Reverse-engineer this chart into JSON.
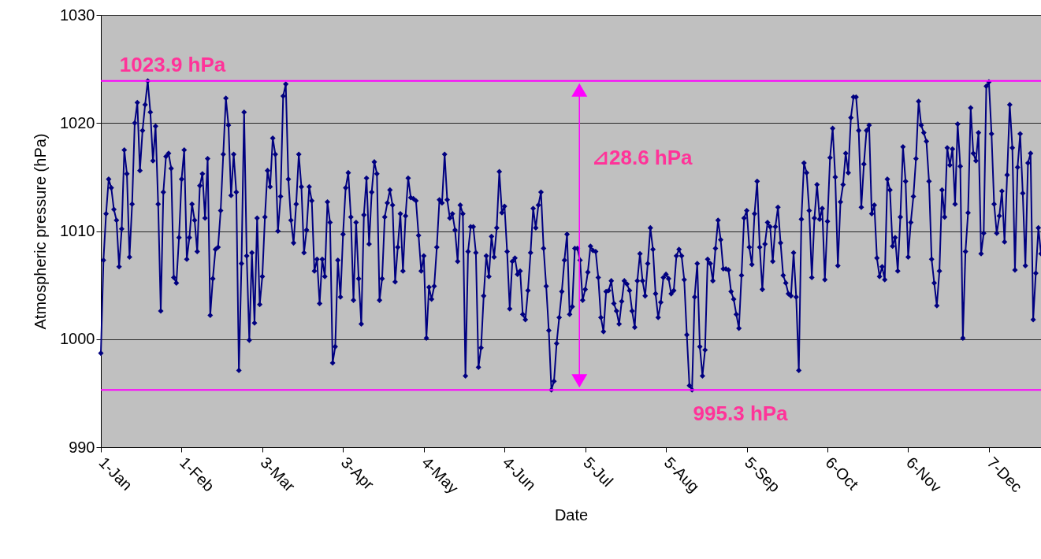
{
  "chart_data": {
    "type": "line",
    "xlabel": "Date",
    "ylabel": "Atmospheric pressure (hPa)",
    "x": [
      "--01-01",
      "--01-02",
      "--01-03",
      "--01-04",
      "--01-05",
      "--01-06",
      "--01-07",
      "--01-08",
      "--01-09",
      "--01-10",
      "--01-11",
      "--01-12",
      "--01-13",
      "--01-14",
      "--01-15",
      "--01-16",
      "--01-17",
      "--01-18",
      "--01-19",
      "--01-20",
      "--01-21",
      "--01-22",
      "--01-23",
      "--01-24",
      "--01-25",
      "--01-26",
      "--01-27",
      "--01-28",
      "--01-29",
      "--01-30",
      "--01-31",
      "--02-01",
      "--02-02",
      "--02-03",
      "--02-04",
      "--02-05",
      "--02-06",
      "--02-07",
      "--02-08",
      "--02-09",
      "--02-10",
      "--02-11",
      "--02-12",
      "--02-13",
      "--02-14",
      "--02-15",
      "--02-16",
      "--02-17",
      "--02-18",
      "--02-19",
      "--02-20",
      "--02-21",
      "--02-22",
      "--02-23",
      "--02-24",
      "--02-25",
      "--02-26",
      "--02-27",
      "--02-28",
      "--02-29",
      "--03-01",
      "--03-02",
      "--03-03",
      "--03-04",
      "--03-05",
      "--03-06",
      "--03-07",
      "--03-08",
      "--03-09",
      "--03-10",
      "--03-11",
      "--03-12",
      "--03-13",
      "--03-14",
      "--03-15",
      "--03-16",
      "--03-17",
      "--03-18",
      "--03-19",
      "--03-20",
      "--03-21",
      "--03-22",
      "--03-23",
      "--03-24",
      "--03-25",
      "--03-26",
      "--03-27",
      "--03-28",
      "--03-29",
      "--03-30",
      "--03-31",
      "--04-01",
      "--04-02",
      "--04-03",
      "--04-04",
      "--04-05",
      "--04-06",
      "--04-07",
      "--04-08",
      "--04-09",
      "--04-10",
      "--04-11",
      "--04-12",
      "--04-13",
      "--04-14",
      "--04-15",
      "--04-16",
      "--04-17",
      "--04-18",
      "--04-19",
      "--04-20",
      "--04-21",
      "--04-22",
      "--04-23",
      "--04-24",
      "--04-25",
      "--04-26",
      "--04-27",
      "--04-28",
      "--04-29",
      "--04-30",
      "--05-01",
      "--05-02",
      "--05-03",
      "--05-04",
      "--05-05",
      "--05-06",
      "--05-07",
      "--05-08",
      "--05-09",
      "--05-10",
      "--05-11",
      "--05-12",
      "--05-13",
      "--05-14",
      "--05-15",
      "--05-16",
      "--05-17",
      "--05-18",
      "--05-19",
      "--05-20",
      "--05-21",
      "--05-22",
      "--05-23",
      "--05-24",
      "--05-25",
      "--05-26",
      "--05-27",
      "--05-28",
      "--05-29",
      "--05-30",
      "--05-31",
      "--06-01",
      "--06-02",
      "--06-03",
      "--06-04",
      "--06-05",
      "--06-06",
      "--06-07",
      "--06-08",
      "--06-09",
      "--06-10",
      "--06-11",
      "--06-12",
      "--06-13",
      "--06-14",
      "--06-15",
      "--06-16",
      "--06-17",
      "--06-18",
      "--06-19",
      "--06-20",
      "--06-21",
      "--06-22",
      "--06-23",
      "--06-24",
      "--06-25",
      "--06-26",
      "--06-27",
      "--06-28",
      "--06-29",
      "--06-30",
      "--07-01",
      "--07-02",
      "--07-03",
      "--07-04",
      "--07-05",
      "--07-06",
      "--07-07",
      "--07-08",
      "--07-09",
      "--07-10",
      "--07-11",
      "--07-12",
      "--07-13",
      "--07-14",
      "--07-15",
      "--07-16",
      "--07-17",
      "--07-18",
      "--07-19",
      "--07-20",
      "--07-21",
      "--07-22",
      "--07-23",
      "--07-24",
      "--07-25",
      "--07-26",
      "--07-27",
      "--07-28",
      "--07-29",
      "--07-30",
      "--07-31",
      "--08-01",
      "--08-02",
      "--08-03",
      "--08-04",
      "--08-05",
      "--08-06",
      "--08-07",
      "--08-08",
      "--08-09",
      "--08-10",
      "--08-11",
      "--08-12",
      "--08-13",
      "--08-14",
      "--08-15",
      "--08-16",
      "--08-17",
      "--08-18",
      "--08-19",
      "--08-20",
      "--08-21",
      "--08-22",
      "--08-23",
      "--08-24",
      "--08-25",
      "--08-26",
      "--08-27",
      "--08-28",
      "--08-29",
      "--08-30",
      "--08-31",
      "--09-01",
      "--09-02",
      "--09-03",
      "--09-04",
      "--09-05",
      "--09-06",
      "--09-07",
      "--09-08",
      "--09-09",
      "--09-10",
      "--09-11",
      "--09-12",
      "--09-13",
      "--09-14",
      "--09-15",
      "--09-16",
      "--09-17",
      "--09-18",
      "--09-19",
      "--09-20",
      "--09-21",
      "--09-22",
      "--09-23",
      "--09-24",
      "--09-25",
      "--09-26",
      "--09-27",
      "--09-28",
      "--09-29",
      "--09-30",
      "--10-01",
      "--10-02",
      "--10-03",
      "--10-04",
      "--10-05",
      "--10-06",
      "--10-07",
      "--10-08",
      "--10-09",
      "--10-10",
      "--10-11",
      "--10-12",
      "--10-13",
      "--10-14",
      "--10-15",
      "--10-16",
      "--10-17",
      "--10-18",
      "--10-19",
      "--10-20",
      "--10-21",
      "--10-22",
      "--10-23",
      "--10-24",
      "--10-25",
      "--10-26",
      "--10-27",
      "--10-28",
      "--10-29",
      "--10-30",
      "--10-31",
      "--11-01",
      "--11-02",
      "--11-03",
      "--11-04",
      "--11-05",
      "--11-06",
      "--11-07",
      "--11-08",
      "--11-09",
      "--11-10",
      "--11-11",
      "--11-12",
      "--11-13",
      "--11-14",
      "--11-15",
      "--11-16",
      "--11-17",
      "--11-18",
      "--11-19",
      "--11-20",
      "--11-21",
      "--11-22",
      "--11-23",
      "--11-24",
      "--11-25",
      "--11-26",
      "--11-27",
      "--11-28",
      "--11-29",
      "--11-30",
      "--12-01",
      "--12-02",
      "--12-03",
      "--12-04",
      "--12-05",
      "--12-06",
      "--12-07",
      "--12-08",
      "--12-09",
      "--12-10",
      "--12-11",
      "--12-12",
      "--12-13",
      "--12-14",
      "--12-15",
      "--12-16",
      "--12-17",
      "--12-18",
      "--12-19",
      "--12-20",
      "--12-21",
      "--12-22",
      "--12-23",
      "--12-24",
      "--12-25",
      "--12-26",
      "--12-27"
    ],
    "series": [
      {
        "color": "#000080",
        "values": [
          998.7,
          1007.3,
          1011.6,
          1014.8,
          1014.0,
          1012.0,
          1011.0,
          1006.7,
          1010.2,
          1017.5,
          1015.3,
          1007.6,
          1012.5,
          1020.0,
          1021.9,
          1015.6,
          1019.3,
          1021.7,
          1023.9,
          1021.0,
          1016.5,
          1019.7,
          1012.5,
          1002.6,
          1013.6,
          1016.9,
          1017.2,
          1015.8,
          1005.7,
          1005.2,
          1009.4,
          1014.8,
          1017.5,
          1007.4,
          1009.4,
          1012.5,
          1011.0,
          1008.1,
          1014.2,
          1015.3,
          1011.2,
          1016.7,
          1002.2,
          1005.6,
          1008.3,
          1008.5,
          1011.9,
          1017.1,
          1022.3,
          1019.8,
          1013.3,
          1017.1,
          1013.6,
          997.1,
          1007.0,
          1021.0,
          1007.7,
          999.9,
          1008.0,
          1001.5,
          1011.2,
          1003.2,
          1005.8,
          1011.3,
          1015.6,
          1014.1,
          1018.6,
          1017.1,
          1010.0,
          1013.2,
          1022.5,
          1023.6,
          1014.8,
          1011.0,
          1008.9,
          1012.5,
          1017.1,
          1014.1,
          1008.0,
          1010.1,
          1014.1,
          1012.8,
          1006.3,
          1007.4,
          1003.3,
          1007.4,
          1005.8,
          1012.7,
          1010.8,
          997.8,
          999.3,
          1007.3,
          1003.9,
          1009.7,
          1014.0,
          1015.4,
          1011.3,
          1003.6,
          1010.8,
          1005.6,
          1001.4,
          1011.5,
          1014.9,
          1008.8,
          1013.6,
          1016.4,
          1015.3,
          1003.6,
          1005.6,
          1011.3,
          1012.6,
          1013.8,
          1012.4,
          1005.3,
          1008.5,
          1011.6,
          1006.3,
          1011.4,
          1014.9,
          1013.1,
          1013.0,
          1012.8,
          1009.6,
          1006.3,
          1007.7,
          1000.1,
          1004.8,
          1003.7,
          1004.9,
          1008.5,
          1012.9,
          1012.6,
          1017.1,
          1012.9,
          1011.2,
          1011.6,
          1010.1,
          1007.2,
          1012.4,
          1011.6,
          996.6,
          1008.1,
          1010.4,
          1010.4,
          1008.0,
          997.4,
          999.2,
          1004.0,
          1007.7,
          1005.8,
          1009.5,
          1007.6,
          1010.3,
          1015.5,
          1011.7,
          1012.3,
          1008.1,
          1002.8,
          1007.2,
          1007.5,
          1006.0,
          1006.3,
          1002.3,
          1001.8,
          1004.5,
          1008.0,
          1012.1,
          1010.3,
          1012.4,
          1013.6,
          1008.4,
          1004.9,
          1000.8,
          995.3,
          996.1,
          999.6,
          1002.0,
          1004.4,
          1007.3,
          1009.7,
          1002.3,
          1003.0,
          1008.4,
          1008.4,
          1007.3,
          1003.6,
          1004.6,
          1006.2,
          1008.6,
          1008.2,
          1008.1,
          1005.7,
          1002.0,
          1000.7,
          1004.4,
          1004.5,
          1005.4,
          1003.3,
          1002.6,
          1001.4,
          1003.5,
          1005.4,
          1005.1,
          1004.5,
          1002.6,
          1001.1,
          1005.4,
          1007.9,
          1005.4,
          1004.0,
          1007.0,
          1010.3,
          1008.3,
          1004.2,
          1002.0,
          1003.4,
          1005.7,
          1006.0,
          1005.6,
          1004.2,
          1004.5,
          1007.7,
          1008.3,
          1007.7,
          1005.5,
          1000.4,
          995.7,
          995.3,
          1003.9,
          1007.0,
          999.3,
          996.6,
          999.0,
          1007.4,
          1007.0,
          1005.4,
          1008.4,
          1011.0,
          1009.2,
          1006.5,
          1006.5,
          1006.4,
          1004.4,
          1003.7,
          1002.3,
          1001.0,
          1005.9,
          1011.2,
          1011.9,
          1008.5,
          1006.9,
          1011.6,
          1014.6,
          1008.5,
          1004.6,
          1008.8,
          1010.8,
          1010.4,
          1007.2,
          1010.4,
          1012.2,
          1008.9,
          1005.9,
          1005.2,
          1004.2,
          1004.0,
          1008.0,
          1003.9,
          997.1,
          1011.1,
          1016.3,
          1015.4,
          1011.9,
          1005.7,
          1011.2,
          1014.3,
          1011.1,
          1012.1,
          1005.5,
          1010.9,
          1016.8,
          1019.5,
          1015.0,
          1006.8,
          1012.7,
          1014.3,
          1017.2,
          1015.4,
          1020.5,
          1022.4,
          1022.4,
          1019.3,
          1012.2,
          1016.2,
          1019.3,
          1019.8,
          1011.6,
          1012.4,
          1007.5,
          1005.8,
          1006.7,
          1005.5,
          1014.8,
          1013.8,
          1008.6,
          1009.4,
          1006.3,
          1011.3,
          1017.8,
          1014.6,
          1007.6,
          1010.8,
          1013.2,
          1016.7,
          1022.0,
          1019.8,
          1019.1,
          1018.3,
          1014.6,
          1007.4,
          1005.2,
          1003.1,
          1006.3,
          1013.8,
          1011.3,
          1017.7,
          1016.1,
          1017.6,
          1012.5,
          1019.9,
          1016.0,
          1000.1,
          1008.1,
          1011.7,
          1021.4,
          1017.2,
          1016.5,
          1019.1,
          1007.9,
          1009.8,
          1023.4,
          1023.8,
          1019.0,
          1012.5,
          1009.8,
          1011.4,
          1013.7,
          1009.0,
          1015.2,
          1021.7,
          1017.7,
          1006.4,
          1015.9,
          1019.0,
          1013.5,
          1006.8,
          1016.3,
          1017.2,
          1001.8,
          1006.1,
          1010.3,
          1007.9
        ]
      }
    ],
    "xlim": [
      "--01-01",
      "--12-27"
    ],
    "xticks": [
      {
        "value": "--01-01",
        "label": "1-Jan"
      },
      {
        "value": "--02-01",
        "label": "1-Feb"
      },
      {
        "value": "--03-03",
        "label": "3-Mar"
      },
      {
        "value": "--04-03",
        "label": "3-Apr"
      },
      {
        "value": "--05-04",
        "label": "4-May"
      },
      {
        "value": "--06-04",
        "label": "4-Jun"
      },
      {
        "value": "--07-05",
        "label": "5-Jul"
      },
      {
        "value": "--08-05",
        "label": "5-Aug"
      },
      {
        "value": "--09-05",
        "label": "5-Sep"
      },
      {
        "value": "--10-06",
        "label": "6-Oct"
      },
      {
        "value": "--11-06",
        "label": "6-Nov"
      },
      {
        "value": "--12-07",
        "label": "7-Dec"
      }
    ],
    "ylim": [
      990,
      1030
    ],
    "yticks": [
      990,
      1000,
      1010,
      1020,
      1030
    ],
    "grid": "y",
    "marker": "diamond",
    "ref_lines": [
      {
        "axis": "y",
        "value": 1023.9,
        "label": "1023.9 hPa",
        "color": "#ff00ff"
      },
      {
        "axis": "y",
        "value": 995.3,
        "label": "995.3 hPa",
        "color": "#ff00ff"
      }
    ],
    "annotations": [
      "⊿28.6 hPa"
    ]
  }
}
